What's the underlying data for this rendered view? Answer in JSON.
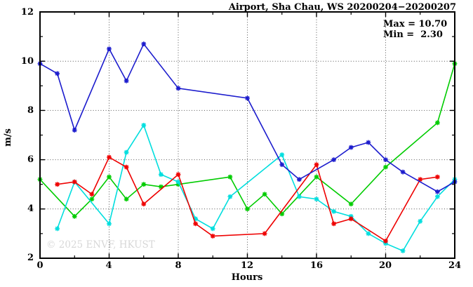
{
  "title": "Airport, Sha Chau, WS 20200204−20200207",
  "annotation": {
    "max_label": "Max = 10.70",
    "min_label": "Min =  2.30"
  },
  "watermark": "© 2025 ENVF, HKUST",
  "axes": {
    "x_tick_labels": [
      "0",
      "4",
      "8",
      "12",
      "16",
      "20",
      "24"
    ],
    "y_tick_labels": [
      "2",
      "4",
      "6",
      "8",
      "10",
      "12"
    ]
  },
  "chart_data": {
    "type": "line",
    "title": "Airport, Sha Chau, WS 20200204−20200207",
    "xlabel": "Hours",
    "ylabel": "m/s",
    "xlim": [
      0,
      24
    ],
    "ylim": [
      2,
      12
    ],
    "x_major_ticks": [
      0,
      4,
      8,
      12,
      16,
      20,
      24
    ],
    "x_minor_ticks": [
      2,
      6,
      10,
      14,
      18,
      22
    ],
    "y_major_ticks": [
      2,
      4,
      6,
      8,
      10,
      12
    ],
    "y_minor_ticks": [
      3,
      5,
      7,
      9,
      11
    ],
    "grid": true,
    "legend": "none",
    "max_value": 10.7,
    "min_value": 2.3,
    "series": [
      {
        "name": "green-line",
        "color": "#00cc00",
        "points": [
          [
            0,
            5.2
          ],
          [
            2,
            3.7
          ],
          [
            3,
            4.4
          ],
          [
            4,
            5.3
          ],
          [
            5,
            4.4
          ],
          [
            6,
            5.0
          ],
          [
            7,
            4.9
          ],
          [
            8,
            5.0
          ],
          [
            11,
            5.3
          ],
          [
            12,
            4.0
          ],
          [
            13,
            4.6
          ],
          [
            14,
            3.8
          ],
          [
            16,
            5.3
          ],
          [
            18,
            4.2
          ],
          [
            20,
            5.7
          ],
          [
            23,
            7.5
          ],
          [
            24,
            9.9
          ]
        ]
      },
      {
        "name": "cyan-line",
        "color": "#00dede",
        "points": [
          [
            1,
            3.2
          ],
          [
            2,
            5.1
          ],
          [
            4,
            3.4
          ],
          [
            5,
            6.3
          ],
          [
            6,
            7.4
          ],
          [
            7,
            5.4
          ],
          [
            8,
            5.1
          ],
          [
            9,
            3.6
          ],
          [
            10,
            3.2
          ],
          [
            11,
            4.5
          ],
          [
            14,
            6.2
          ],
          [
            15,
            4.5
          ],
          [
            16,
            4.4
          ],
          [
            17,
            3.9
          ],
          [
            18,
            3.7
          ],
          [
            19,
            3.0
          ],
          [
            20,
            2.6
          ],
          [
            21,
            2.3
          ],
          [
            22,
            3.5
          ],
          [
            23,
            4.5
          ],
          [
            24,
            5.2
          ]
        ]
      },
      {
        "name": "red-line",
        "color": "#ee0000",
        "points": [
          [
            1,
            5.0
          ],
          [
            2,
            5.1
          ],
          [
            3,
            4.6
          ],
          [
            4,
            6.1
          ],
          [
            5,
            5.7
          ],
          [
            6,
            4.2
          ],
          [
            8,
            5.4
          ],
          [
            9,
            3.4
          ],
          [
            10,
            2.9
          ],
          [
            13,
            3.0
          ],
          [
            16,
            5.8
          ],
          [
            17,
            3.4
          ],
          [
            18,
            3.6
          ],
          [
            20,
            2.7
          ],
          [
            22,
            5.2
          ],
          [
            23,
            5.3
          ]
        ]
      },
      {
        "name": "blue-line",
        "color": "#1c1ccd",
        "points": [
          [
            0,
            9.9
          ],
          [
            1,
            9.5
          ],
          [
            2,
            7.2
          ],
          [
            4,
            10.5
          ],
          [
            5,
            9.2
          ],
          [
            6,
            10.7
          ],
          [
            8,
            8.9
          ],
          [
            12,
            8.5
          ],
          [
            14,
            5.8
          ],
          [
            15,
            5.2
          ],
          [
            17,
            6.0
          ],
          [
            18,
            6.5
          ],
          [
            19,
            6.7
          ],
          [
            20,
            6.0
          ],
          [
            21,
            5.5
          ],
          [
            23,
            4.7
          ],
          [
            24,
            5.1
          ]
        ]
      }
    ]
  }
}
